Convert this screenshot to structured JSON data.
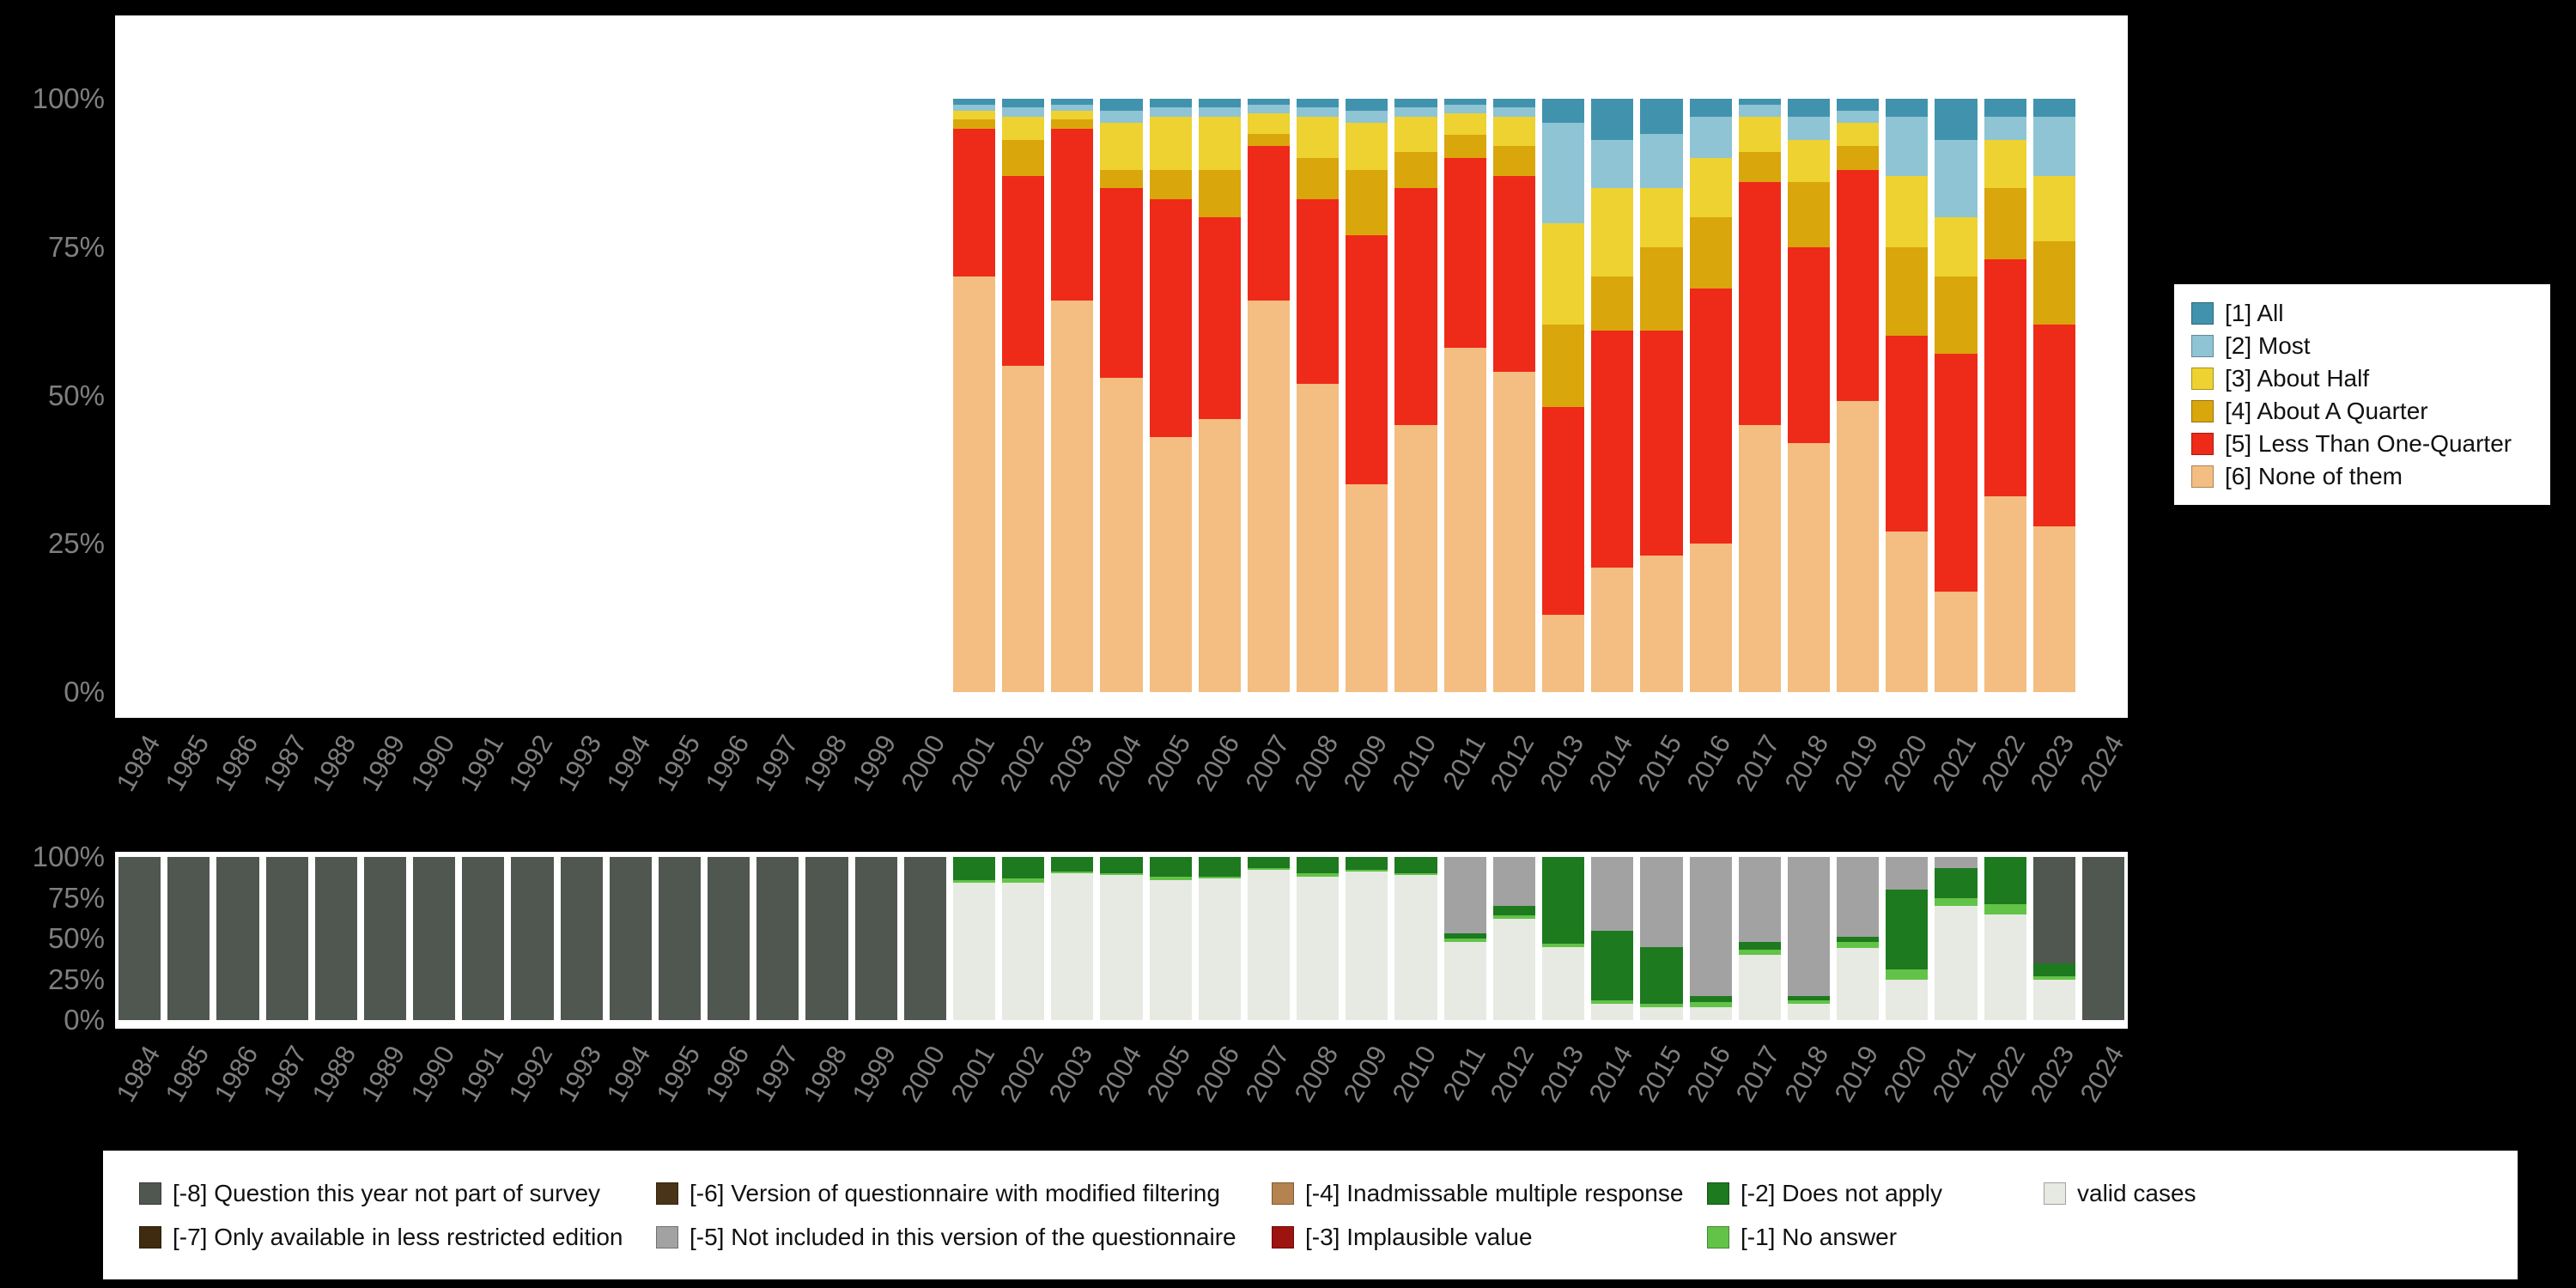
{
  "chart_data": [
    {
      "id": "frequency-chart",
      "type": "bar",
      "stacked": true,
      "orientation": "vertical",
      "ylim": [
        0,
        100
      ],
      "grid": false,
      "y_ticks": [
        "100%",
        "75%",
        "50%",
        "25%",
        "0%"
      ],
      "x": [
        "1984",
        "1985",
        "1986",
        "1987",
        "1988",
        "1989",
        "1990",
        "1991",
        "1992",
        "1993",
        "1994",
        "1995",
        "1996",
        "1997",
        "1998",
        "1999",
        "2000",
        "2001",
        "2002",
        "2003",
        "2004",
        "2005",
        "2006",
        "2007",
        "2008",
        "2009",
        "2010",
        "2011",
        "2012",
        "2013",
        "2014",
        "2015",
        "2016",
        "2017",
        "2018",
        "2019",
        "2020",
        "2021",
        "2022",
        "2023",
        "2024"
      ],
      "series_keys_bottom_to_top": [
        "none-of-them",
        "less-than-one-quarter",
        "about-a-quarter",
        "about-half",
        "most",
        "all"
      ],
      "series_labels_bottom_to_top": [
        "[6] None of them",
        "[5] Less Than One-Quarter",
        "[4] About A Quarter",
        "[3] About Half",
        "[2] Most",
        "[1] All"
      ],
      "colors_bottom_to_top": [
        "#f4bd81",
        "#ee2a19",
        "#d9a60b",
        "#edd231",
        "#8ec4d4",
        "#4193ad"
      ],
      "bars": {
        "2001": [
          70,
          25,
          1.5,
          1.5,
          1,
          1
        ],
        "2002": [
          55,
          32,
          6,
          4,
          1.5,
          1.5
        ],
        "2003": [
          66,
          29,
          1.5,
          1.5,
          1,
          1
        ],
        "2004": [
          53,
          32,
          3,
          8,
          2,
          2
        ],
        "2005": [
          43,
          40,
          5,
          9,
          1.5,
          1.5
        ],
        "2006": [
          46,
          34,
          8,
          9,
          1.5,
          1.5
        ],
        "2007": [
          66,
          26,
          2,
          3.5,
          1.5,
          1
        ],
        "2008": [
          52,
          31,
          7,
          7,
          1.5,
          1.5
        ],
        "2009": [
          35,
          42,
          11,
          8,
          2,
          2
        ],
        "2010": [
          45,
          40,
          6,
          6,
          1.5,
          1.5
        ],
        "2011": [
          58,
          32,
          4,
          3.5,
          1.5,
          1
        ],
        "2012": [
          54,
          33,
          5,
          5,
          1.5,
          1.5
        ],
        "2013": [
          13,
          35,
          14,
          17,
          17,
          4
        ],
        "2014": [
          21,
          40,
          9,
          15,
          8,
          7
        ],
        "2015": [
          23,
          38,
          14,
          10,
          9,
          6
        ],
        "2016": [
          25,
          43,
          12,
          10,
          7,
          3
        ],
        "2017": [
          45,
          41,
          5,
          6,
          2,
          1
        ],
        "2018": [
          42,
          33,
          11,
          7,
          4,
          3
        ],
        "2019": [
          49,
          39,
          4,
          4,
          2,
          2
        ],
        "2020": [
          27,
          33,
          15,
          12,
          10,
          3
        ],
        "2021": [
          17,
          40,
          13,
          10,
          13,
          7
        ],
        "2022": [
          33,
          40,
          12,
          8,
          4,
          3
        ],
        "2023": [
          28,
          34,
          14,
          11,
          10,
          3
        ]
      },
      "legend": {
        "position": "right",
        "items": [
          {
            "label": "[1] All",
            "color": "#4193ad"
          },
          {
            "label": "[2] Most",
            "color": "#8ec4d4"
          },
          {
            "label": "[3] About Half",
            "color": "#edd231"
          },
          {
            "label": "[4] About A Quarter",
            "color": "#d9a60b"
          },
          {
            "label": "[5] Less Than One-Quarter",
            "color": "#ee2a19"
          },
          {
            "label": "[6] None of them",
            "color": "#f4bd81"
          }
        ]
      }
    },
    {
      "id": "missing-values-chart",
      "type": "bar",
      "stacked": true,
      "orientation": "vertical",
      "ylim": [
        0,
        100
      ],
      "grid": false,
      "y_ticks": [
        "100%",
        "75%",
        "50%",
        "25%",
        "0%"
      ],
      "x": [
        "1984",
        "1985",
        "1986",
        "1987",
        "1988",
        "1989",
        "1990",
        "1991",
        "1992",
        "1993",
        "1994",
        "1995",
        "1996",
        "1997",
        "1998",
        "1999",
        "2000",
        "2001",
        "2002",
        "2003",
        "2004",
        "2005",
        "2006",
        "2007",
        "2008",
        "2009",
        "2010",
        "2011",
        "2012",
        "2013",
        "2014",
        "2015",
        "2016",
        "2017",
        "2018",
        "2019",
        "2020",
        "2021",
        "2022",
        "2023",
        "2024"
      ],
      "series_keys_bottom_to_top": [
        "valid-cases",
        "no-answer",
        "does-not-apply",
        "implausible-value",
        "inadmissable-multiple-response",
        "not-included-in-this-version",
        "modified-filtering",
        "less-restricted-edition",
        "not-part-of-survey"
      ],
      "series_labels_bottom_to_top": [
        "valid cases",
        "[-1] No answer",
        "[-2] Does not apply",
        "[-3] Implausible value",
        "[-4] Inadmissable multiple response",
        "[-5] Not included in this version of the questionnaire",
        "[-6] Version of questionnaire with modified filtering",
        "[-7] Only available in less restricted edition",
        "[-8] Question this year not part of survey"
      ],
      "colors_bottom_to_top": [
        "#e7eae3",
        "#62c348",
        "#1d7a1f",
        "#9d1310",
        "#b5834f",
        "#a2a2a2",
        "#4a3418",
        "#3f2b10",
        "#505750"
      ],
      "bars": {
        "1984": [
          0,
          0,
          0,
          0,
          0,
          0,
          0,
          0,
          100
        ],
        "1985": [
          0,
          0,
          0,
          0,
          0,
          0,
          0,
          0,
          100
        ],
        "1986": [
          0,
          0,
          0,
          0,
          0,
          0,
          0,
          0,
          100
        ],
        "1987": [
          0,
          0,
          0,
          0,
          0,
          0,
          0,
          0,
          100
        ],
        "1988": [
          0,
          0,
          0,
          0,
          0,
          0,
          0,
          0,
          100
        ],
        "1989": [
          0,
          0,
          0,
          0,
          0,
          0,
          0,
          0,
          100
        ],
        "1990": [
          0,
          0,
          0,
          0,
          0,
          0,
          0,
          0,
          100
        ],
        "1991": [
          0,
          0,
          0,
          0,
          0,
          0,
          0,
          0,
          100
        ],
        "1992": [
          0,
          0,
          0,
          0,
          0,
          0,
          0,
          0,
          100
        ],
        "1993": [
          0,
          0,
          0,
          0,
          0,
          0,
          0,
          0,
          100
        ],
        "1994": [
          0,
          0,
          0,
          0,
          0,
          0,
          0,
          0,
          100
        ],
        "1995": [
          0,
          0,
          0,
          0,
          0,
          0,
          0,
          0,
          100
        ],
        "1996": [
          0,
          0,
          0,
          0,
          0,
          0,
          0,
          0,
          100
        ],
        "1997": [
          0,
          0,
          0,
          0,
          0,
          0,
          0,
          0,
          100
        ],
        "1998": [
          0,
          0,
          0,
          0,
          0,
          0,
          0,
          0,
          100
        ],
        "1999": [
          0,
          0,
          0,
          0,
          0,
          0,
          0,
          0,
          100
        ],
        "2000": [
          0,
          0,
          0,
          0,
          0,
          0,
          0,
          0,
          100
        ],
        "2001": [
          84,
          2,
          14,
          0,
          0,
          0,
          0,
          0,
          0
        ],
        "2002": [
          84,
          3,
          13,
          0,
          0,
          0,
          0,
          0,
          0
        ],
        "2003": [
          90,
          1,
          9,
          0,
          0,
          0,
          0,
          0,
          0
        ],
        "2004": [
          89,
          1,
          10,
          0,
          0,
          0,
          0,
          0,
          0
        ],
        "2005": [
          86,
          2,
          12,
          0,
          0,
          0,
          0,
          0,
          0
        ],
        "2006": [
          87,
          1,
          12,
          0,
          0,
          0,
          0,
          0,
          0
        ],
        "2007": [
          92,
          1,
          7,
          0,
          0,
          0,
          0,
          0,
          0
        ],
        "2008": [
          88,
          2,
          10,
          0,
          0,
          0,
          0,
          0,
          0
        ],
        "2009": [
          91,
          1,
          8,
          0,
          0,
          0,
          0,
          0,
          0
        ],
        "2010": [
          89,
          1,
          10,
          0,
          0,
          0,
          0,
          0,
          0
        ],
        "2011": [
          48,
          2,
          3,
          0,
          0,
          47,
          0,
          0,
          0
        ],
        "2012": [
          62,
          2,
          6,
          0,
          0,
          30,
          0,
          0,
          0
        ],
        "2013": [
          45,
          2,
          53,
          0,
          0,
          0,
          0,
          0,
          0
        ],
        "2014": [
          10,
          2,
          43,
          0,
          0,
          45,
          0,
          0,
          0
        ],
        "2015": [
          8,
          2,
          35,
          0,
          0,
          55,
          0,
          0,
          0
        ],
        "2016": [
          8,
          3,
          4,
          0,
          0,
          85,
          0,
          0,
          0
        ],
        "2017": [
          40,
          3,
          5,
          0,
          0,
          52,
          0,
          0,
          0
        ],
        "2018": [
          10,
          2,
          3,
          0,
          0,
          85,
          0,
          0,
          0
        ],
        "2019": [
          44,
          4,
          3,
          0,
          0,
          49,
          0,
          0,
          0
        ],
        "2020": [
          25,
          6,
          49,
          0,
          0,
          20,
          0,
          0,
          0
        ],
        "2021": [
          70,
          5,
          18,
          0,
          0,
          7,
          0,
          0,
          0
        ],
        "2022": [
          65,
          6,
          29,
          0,
          0,
          0,
          0,
          0,
          0
        ],
        "2023": [
          25,
          2,
          8,
          0,
          0,
          0,
          0,
          0,
          65
        ],
        "2024": [
          0,
          0,
          0,
          0,
          0,
          0,
          0,
          0,
          100
        ]
      },
      "legend_rows": [
        [
          {
            "label": "[-8] Question this year not part of survey",
            "color": "#505750"
          },
          {
            "label": "[-6] Version of questionnaire with modified filtering",
            "color": "#4a3418"
          },
          {
            "label": "[-4] Inadmissable multiple response",
            "color": "#b5834f"
          },
          {
            "label": "[-2] Does not apply",
            "color": "#1d7a1f"
          },
          {
            "label": "valid cases",
            "color": "#e7eae3"
          }
        ],
        [
          {
            "label": "[-7] Only available in less restricted edition",
            "color": "#3f2b10"
          },
          {
            "label": "[-5] Not included in this version of the questionnaire",
            "color": "#a2a2a2"
          },
          {
            "label": "[-3] Implausible value",
            "color": "#9d1310"
          },
          {
            "label": "[-1] No answer",
            "color": "#62c348"
          }
        ]
      ]
    }
  ],
  "colors": {
    "background": "#000000",
    "plot_background": "#ffffff",
    "tick_label": "#7f7f7f"
  }
}
